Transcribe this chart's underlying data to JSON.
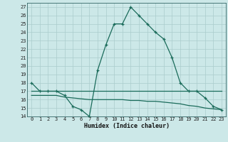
{
  "title": "",
  "xlabel": "Humidex (Indice chaleur)",
  "bg_color": "#cce8e8",
  "grid_color": "#aacccc",
  "line_color": "#1a6b5a",
  "xlim": [
    -0.5,
    23.5
  ],
  "ylim": [
    14,
    27.5
  ],
  "yticks": [
    14,
    15,
    16,
    17,
    18,
    19,
    20,
    21,
    22,
    23,
    24,
    25,
    26,
    27
  ],
  "xticks": [
    0,
    1,
    2,
    3,
    4,
    5,
    6,
    7,
    8,
    9,
    10,
    11,
    12,
    13,
    14,
    15,
    16,
    17,
    18,
    19,
    20,
    21,
    22,
    23
  ],
  "main_series": [
    18,
    17,
    17,
    17,
    16.5,
    15.2,
    14.8,
    14,
    19.5,
    22.5,
    25,
    25,
    27,
    26,
    25,
    24,
    23.2,
    21,
    18,
    17,
    17,
    16.2,
    15.2,
    14.8
  ],
  "flat_line_high": [
    17,
    17,
    17,
    17,
    17,
    17,
    17,
    17,
    17,
    17,
    17,
    17,
    17,
    17,
    17,
    17,
    17,
    17,
    17,
    17,
    17,
    17,
    17,
    17
  ],
  "flat_line_low": [
    16.5,
    16.5,
    16.5,
    16.5,
    16.3,
    16.2,
    16.1,
    16.0,
    16.0,
    16.0,
    16.0,
    16.0,
    15.9,
    15.9,
    15.8,
    15.8,
    15.7,
    15.6,
    15.5,
    15.3,
    15.2,
    15.0,
    14.9,
    14.8
  ]
}
